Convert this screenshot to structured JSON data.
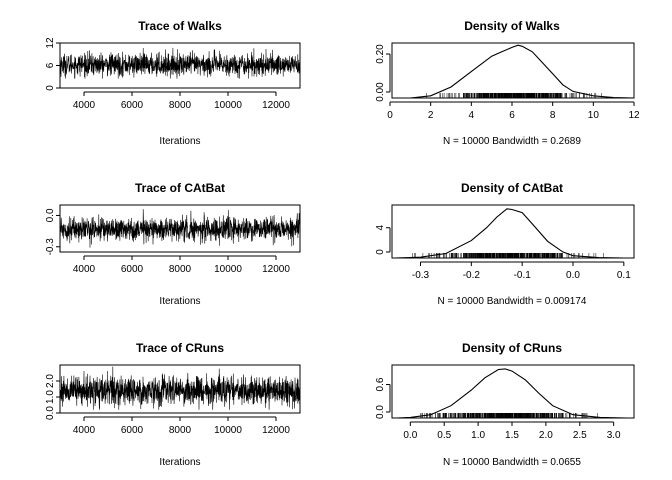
{
  "chart_data": [
    {
      "type": "line",
      "title": "Trace of Walks",
      "xlabel": "Iterations",
      "ylabel": "",
      "xlim": [
        3000,
        13000
      ],
      "ylim": [
        0,
        12
      ],
      "xticks": [
        "4000",
        "6000",
        "8000",
        "10000",
        "12000"
      ],
      "yticks": [
        "0",
        "6",
        "12"
      ],
      "series": [
        {
          "mean": 6.2,
          "sd": 1.5,
          "min": 2.5,
          "max": 11.5
        }
      ]
    },
    {
      "type": "line",
      "title": "Density of Walks",
      "xlabel": "N = 10000   Bandwidth = 0.2689",
      "ylabel": "",
      "xlim": [
        0,
        12
      ],
      "ylim": [
        0,
        0.25
      ],
      "xticks": [
        "0",
        "2",
        "4",
        "6",
        "8",
        "10",
        "12"
      ],
      "yticks": [
        "0.00",
        "0.20"
      ],
      "x": [
        1.0,
        2.0,
        3.0,
        4.0,
        5.0,
        5.5,
        6.0,
        6.3,
        6.5,
        7.0,
        7.5,
        8.0,
        8.5,
        9.0,
        10.0,
        11.0,
        12.0
      ],
      "y": [
        0.0,
        0.01,
        0.05,
        0.12,
        0.19,
        0.21,
        0.23,
        0.24,
        0.235,
        0.21,
        0.16,
        0.11,
        0.06,
        0.03,
        0.01,
        0.002,
        0.0
      ],
      "rug": [
        1.5,
        10.5
      ]
    },
    {
      "type": "line",
      "title": "Trace of CAtBat",
      "xlabel": "Iterations",
      "ylabel": "",
      "xlim": [
        3000,
        13000
      ],
      "ylim": [
        -0.35,
        0.1
      ],
      "xticks": [
        "4000",
        "6000",
        "8000",
        "10000",
        "12000"
      ],
      "yticks": [
        "-0.3",
        "0.0"
      ],
      "series": [
        {
          "mean": -0.13,
          "sd": 0.055,
          "min": -0.32,
          "max": 0.08
        }
      ]
    },
    {
      "type": "line",
      "title": "Density of CAtBat",
      "xlabel": "N = 10000   Bandwidth = 0.009174",
      "ylabel": "",
      "xlim": [
        -0.36,
        0.12
      ],
      "ylim": [
        0,
        7
      ],
      "xticks": [
        "-0.3",
        "-0.2",
        "-0.1",
        "0.0",
        "0.1"
      ],
      "yticks": [
        "0",
        "4"
      ],
      "x": [
        -0.35,
        -0.3,
        -0.25,
        -0.2,
        -0.17,
        -0.15,
        -0.13,
        -0.12,
        -0.1,
        -0.08,
        -0.05,
        -0.02,
        0.0,
        0.05,
        0.1
      ],
      "y": [
        0.0,
        0.1,
        0.6,
        2.3,
        4.0,
        5.4,
        6.5,
        6.4,
        6.0,
        4.5,
        2.2,
        0.8,
        0.3,
        0.05,
        0.0
      ],
      "rug": [
        -0.33,
        0.08
      ]
    },
    {
      "type": "line",
      "title": "Trace of CRuns",
      "xlabel": "Iterations",
      "ylabel": "",
      "xlim": [
        3000,
        13000
      ],
      "ylim": [
        0,
        3.0
      ],
      "xticks": [
        "4000",
        "6000",
        "8000",
        "10000",
        "12000"
      ],
      "yticks": [
        "0.0",
        "1.0",
        "2.0"
      ],
      "series": [
        {
          "mean": 1.4,
          "sd": 0.45,
          "min": 0.2,
          "max": 2.9
        }
      ]
    },
    {
      "type": "line",
      "title": "Density of CRuns",
      "xlabel": "N = 10000   Bandwidth = 0.0655",
      "ylabel": "",
      "xlim": [
        -0.3,
        3.3
      ],
      "ylim": [
        0,
        0.95
      ],
      "xticks": [
        "0.0",
        "0.5",
        "1.0",
        "1.5",
        "2.0",
        "2.5",
        "3.0"
      ],
      "yticks": [
        "0.0",
        "0.6"
      ],
      "x": [
        -0.2,
        0.0,
        0.3,
        0.6,
        0.9,
        1.1,
        1.3,
        1.4,
        1.5,
        1.7,
        1.9,
        2.1,
        2.4,
        2.8,
        3.2
      ],
      "y": [
        0.0,
        0.01,
        0.06,
        0.22,
        0.5,
        0.72,
        0.87,
        0.88,
        0.84,
        0.68,
        0.44,
        0.22,
        0.06,
        0.01,
        0.0
      ],
      "rug": [
        0.0,
        2.9
      ]
    }
  ]
}
